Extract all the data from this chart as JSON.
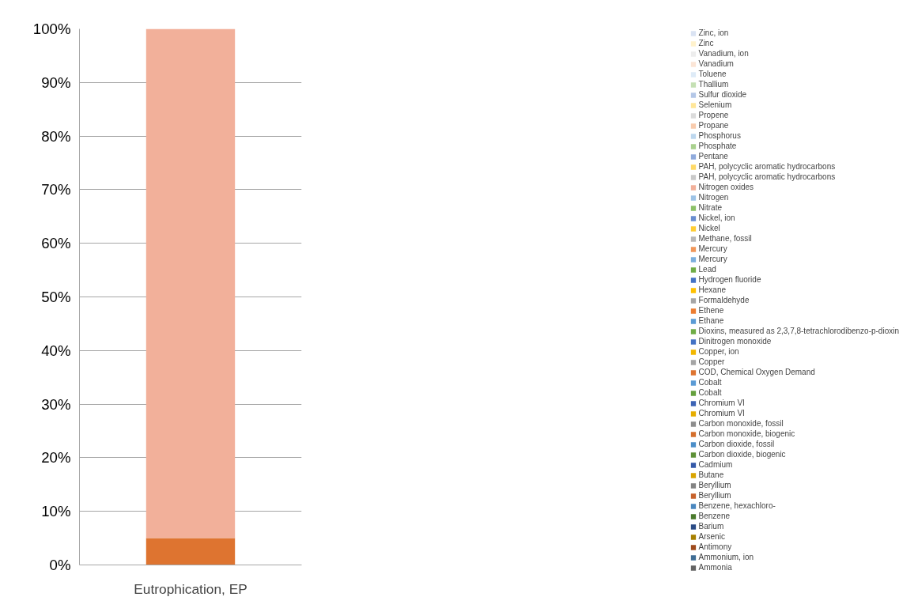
{
  "chart_data": {
    "type": "bar",
    "stacked": true,
    "categories": [
      "Eutrophication, EP"
    ],
    "ylim": [
      0,
      1
    ],
    "yticks": [
      {
        "value": 0,
        "label": "0%"
      },
      {
        "value": 0.1,
        "label": "10%"
      },
      {
        "value": 0.2,
        "label": "20%"
      },
      {
        "value": 0.3,
        "label": "30%"
      },
      {
        "value": 0.4,
        "label": "40%"
      },
      {
        "value": 0.5,
        "label": "50%"
      },
      {
        "value": 0.6,
        "label": "60%"
      },
      {
        "value": 0.7,
        "label": "70%"
      },
      {
        "value": 0.8,
        "label": "80%"
      },
      {
        "value": 0.9,
        "label": "90%"
      },
      {
        "value": 1,
        "label": "100%"
      }
    ],
    "grid": "y",
    "legend": "right",
    "series": [
      {
        "name": "Ammonia",
        "color": "#636363",
        "values": [
          0
        ]
      },
      {
        "name": "Ammonium, ion",
        "color": "#3f6d94",
        "values": [
          0
        ]
      },
      {
        "name": "Antimony",
        "color": "#9e4a1c",
        "values": [
          0
        ]
      },
      {
        "name": "Arsenic",
        "color": "#a67f00",
        "values": [
          0
        ]
      },
      {
        "name": "Barium",
        "color": "#2a4b85",
        "values": [
          0
        ]
      },
      {
        "name": "Benzene",
        "color": "#4a7a2c",
        "values": [
          0
        ]
      },
      {
        "name": "Benzene, hexachloro-",
        "color": "#4a87bf",
        "values": [
          0
        ]
      },
      {
        "name": "Beryllium",
        "color": "#c7622b",
        "values": [
          0
        ]
      },
      {
        "name": "Beryllium",
        "color": "#838383",
        "values": [
          0
        ]
      },
      {
        "name": "Butane",
        "color": "#d9a400",
        "values": [
          0
        ]
      },
      {
        "name": "Cadmium",
        "color": "#3559a8",
        "values": [
          0
        ]
      },
      {
        "name": "Carbon dioxide, biogenic",
        "color": "#5e9137",
        "values": [
          0
        ]
      },
      {
        "name": "Carbon dioxide, fossil",
        "color": "#4b8ec8",
        "values": [
          0
        ]
      },
      {
        "name": "Carbon monoxide, biogenic",
        "color": "#d46f2d",
        "values": [
          0
        ]
      },
      {
        "name": "Carbon monoxide, fossil",
        "color": "#8d8d8d",
        "values": [
          0
        ]
      },
      {
        "name": "Chromium VI",
        "color": "#e6ad00",
        "values": [
          0
        ]
      },
      {
        "name": "Chromium VI",
        "color": "#3d64b5",
        "values": [
          0
        ]
      },
      {
        "name": "Cobalt",
        "color": "#65a03e",
        "values": [
          0
        ]
      },
      {
        "name": "Cobalt",
        "color": "#5b9bd5",
        "values": [
          0
        ]
      },
      {
        "name": "COD, Chemical Oxygen Demand",
        "color": "#de7430",
        "values": [
          0.05
        ]
      },
      {
        "name": "Copper",
        "color": "#a5a5a5",
        "values": [
          0
        ]
      },
      {
        "name": "Copper, ion",
        "color": "#f2b700",
        "values": [
          0
        ]
      },
      {
        "name": "Dinitrogen monoxide",
        "color": "#4472c4",
        "values": [
          0
        ]
      },
      {
        "name": "Dioxins, measured as 2,3,7,8-tetrachlorodibenzo-p-dioxin",
        "color": "#70ad47",
        "values": [
          0
        ]
      },
      {
        "name": "Ethane",
        "color": "#5b9bd5",
        "values": [
          0
        ]
      },
      {
        "name": "Ethene",
        "color": "#ed7d31",
        "values": [
          0
        ]
      },
      {
        "name": "Formaldehyde",
        "color": "#a5a5a5",
        "values": [
          0
        ]
      },
      {
        "name": "Hexane",
        "color": "#ffc000",
        "values": [
          0
        ]
      },
      {
        "name": "Hydrogen fluoride",
        "color": "#4472c4",
        "values": [
          0
        ]
      },
      {
        "name": "Lead",
        "color": "#70ad47",
        "values": [
          0
        ]
      },
      {
        "name": "Mercury",
        "color": "#7cafdd",
        "values": [
          0
        ]
      },
      {
        "name": "Mercury",
        "color": "#f1975a",
        "values": [
          0
        ]
      },
      {
        "name": "Methane, fossil",
        "color": "#b7b7b7",
        "values": [
          0
        ]
      },
      {
        "name": "Nickel",
        "color": "#ffcd33",
        "values": [
          0
        ]
      },
      {
        "name": "Nickel, ion",
        "color": "#698ed0",
        "values": [
          0
        ]
      },
      {
        "name": "Nitrate",
        "color": "#8cc168",
        "values": [
          0
        ]
      },
      {
        "name": "Nitrogen",
        "color": "#9dc3e6",
        "values": [
          0
        ]
      },
      {
        "name": "Nitrogen oxides",
        "color": "#f2b09a",
        "values": [
          0.95
        ]
      },
      {
        "name": "PAH, polycyclic aromatic hydrocarbons",
        "color": "#c9c9c9",
        "values": [
          0
        ]
      },
      {
        "name": "PAH, polycyclic aromatic hydrocarbons",
        "color": "#ffd966",
        "values": [
          0
        ]
      },
      {
        "name": "Pentane",
        "color": "#8faadc",
        "values": [
          0
        ]
      },
      {
        "name": "Phosphate",
        "color": "#a9d18e",
        "values": [
          0
        ]
      },
      {
        "name": "Phosphorus",
        "color": "#bdd7ee",
        "values": [
          0
        ]
      },
      {
        "name": "Propane",
        "color": "#f8cbad",
        "values": [
          0
        ]
      },
      {
        "name": "Propene",
        "color": "#dbdbdb",
        "values": [
          0
        ]
      },
      {
        "name": "Selenium",
        "color": "#ffe699",
        "values": [
          0
        ]
      },
      {
        "name": "Sulfur dioxide",
        "color": "#b4c7e7",
        "values": [
          0
        ]
      },
      {
        "name": "Thallium",
        "color": "#c5e0b4",
        "values": [
          0
        ]
      },
      {
        "name": "Toluene",
        "color": "#deebf7",
        "values": [
          0
        ]
      },
      {
        "name": "Vanadium",
        "color": "#fbe5d6",
        "values": [
          0
        ]
      },
      {
        "name": "Vanadium, ion",
        "color": "#ededed",
        "values": [
          0
        ]
      },
      {
        "name": "Zinc",
        "color": "#fff2cc",
        "values": [
          0
        ]
      },
      {
        "name": "Zinc, ion",
        "color": "#dae3f3",
        "values": [
          0
        ]
      }
    ]
  }
}
